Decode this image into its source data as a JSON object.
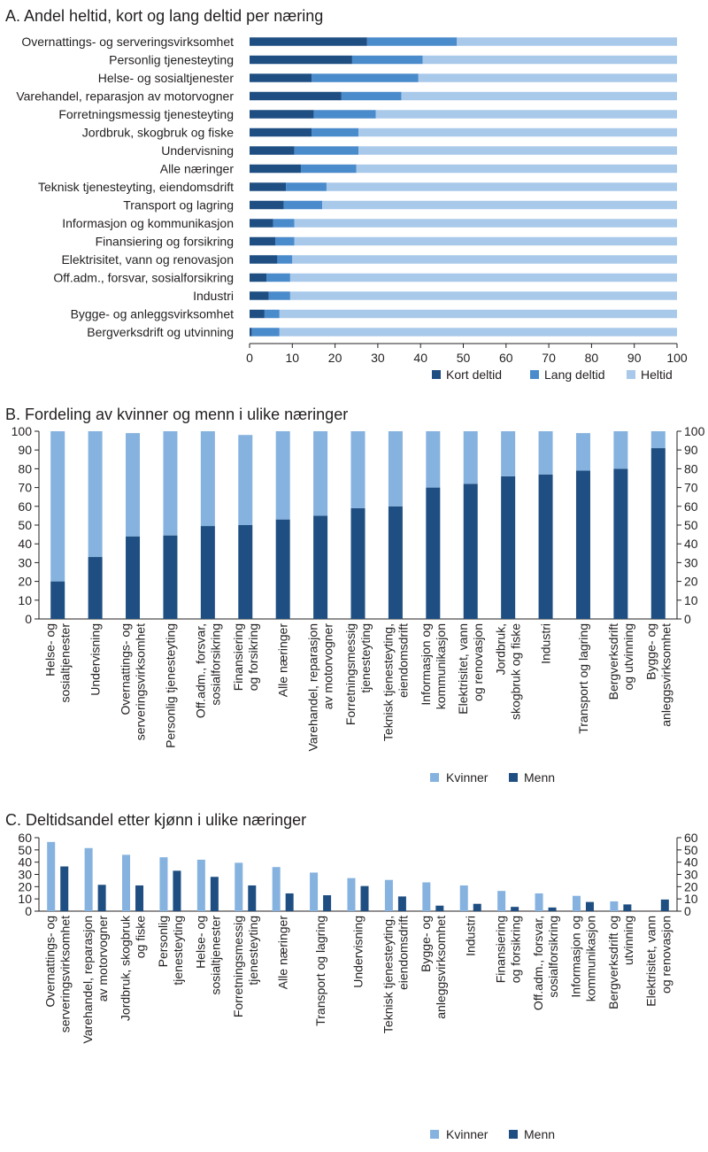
{
  "colors": {
    "dark": "#1f4f82",
    "mid": "#4a8bcc",
    "light": "#a9c9ea",
    "kvinner_c": "#86b2df",
    "menn_c": "#1f4f82"
  },
  "chart_data": [
    {
      "type": "bar",
      "orientation": "horizontal",
      "stacked": true,
      "title": "A. Andel heltid, kort og lang deltid per næring",
      "categories": [
        "Overnattings- og serveringsvirksomhet",
        "Personlig tjenesteyting",
        "Helse- og sosialtjenester",
        "Varehandel, reparasjon av motorvogner",
        "Forretningsmessig tjenesteyting",
        "Jordbruk, skogbruk og fiske",
        "Undervisning",
        "Alle næringer",
        "Teknisk tjenesteyting, eiendomsdrift",
        "Transport og lagring",
        "Informasjon og kommunikasjon",
        "Finansiering og forsikring",
        "Elektrisitet, vann og renovasjon",
        "Off.adm., forsvar, sosialforsikring",
        "Industri",
        "Bygge- og anleggsvirksomhet",
        "Bergverksdrift og utvinning"
      ],
      "series": [
        {
          "name": "Kort deltid",
          "values": [
            27.5,
            24,
            14.5,
            21.5,
            15,
            14.5,
            10.5,
            12,
            8.5,
            8,
            5.5,
            6,
            6.5,
            4,
            4.5,
            3.5,
            0.5
          ]
        },
        {
          "name": "Lang deltid",
          "values": [
            21,
            16.5,
            25,
            14,
            14.5,
            11,
            15,
            13,
            9.5,
            9,
            5,
            4.5,
            3.5,
            5.5,
            5,
            3.5,
            6.5
          ]
        },
        {
          "name": "Heltid",
          "values": [
            51.5,
            59.5,
            60.5,
            64.5,
            70.5,
            74.5,
            74.5,
            75,
            82,
            83,
            89.5,
            89.5,
            90,
            90.5,
            90.5,
            93,
            93
          ]
        }
      ],
      "xticks": [
        "0",
        "10",
        "20",
        "30",
        "40",
        "50",
        "60",
        "70",
        "80",
        "90",
        "100"
      ],
      "xlim": [
        0,
        100
      ],
      "legend_position": "bottom-right"
    },
    {
      "type": "bar",
      "stacked": true,
      "title": "B. Fordeling av kvinner og menn i ulike næringer",
      "categories": [
        [
          "Helse- og",
          "sosialtjenester"
        ],
        [
          "Undervisning"
        ],
        [
          "Overnattings- og",
          "serveringsvirksomhet"
        ],
        [
          "Personlig tjenesteyting"
        ],
        [
          "Off.adm., forsvar,",
          "sosialforsikring"
        ],
        [
          "Finansiering",
          "og forsikring"
        ],
        [
          "Alle næringer"
        ],
        [
          "Varehandel, reparasjon",
          "av motorvogner"
        ],
        [
          "Forretningsmessig",
          "tjenesteyting"
        ],
        [
          "Teknisk tjenesteyting,",
          "eiendomsdrift"
        ],
        [
          "Informasjon og",
          "kommunikasjon"
        ],
        [
          "Elektrisitet, vann",
          "og renovasjon"
        ],
        [
          "Jordbruk,",
          "skogbruk og fiske"
        ],
        [
          "Industri"
        ],
        [
          "Transport og lagring"
        ],
        [
          "Bergverksdrift",
          "og utvinning"
        ],
        [
          "Bygge- og",
          "anleggsvirksomhet"
        ]
      ],
      "series": [
        {
          "name": "Menn",
          "values": [
            20,
            33,
            44,
            44.5,
            49.5,
            50,
            53,
            55,
            59,
            60,
            70,
            72,
            76,
            77,
            79,
            80,
            91
          ]
        },
        {
          "name": "Kvinner",
          "values": [
            80,
            67,
            55,
            55.5,
            50.5,
            48,
            47,
            45,
            41,
            40,
            30,
            28,
            24,
            23,
            20,
            20,
            9
          ]
        }
      ],
      "yticks": [
        "0",
        "10",
        "20",
        "30",
        "40",
        "50",
        "60",
        "70",
        "80",
        "90",
        "100"
      ],
      "ylim": [
        0,
        100
      ],
      "legend_position": "bottom-center"
    },
    {
      "type": "bar",
      "title": "C. Deltidsandel etter kjønn i ulike næringer",
      "categories": [
        [
          "Overnattings- og",
          "serveringsvirksomhet"
        ],
        [
          "Varehandel, reparasjon",
          "av motorvogner"
        ],
        [
          "Jordbruk, skogbruk",
          "og fiske"
        ],
        [
          "Personlig",
          "tjenesteyting"
        ],
        [
          "Helse- og",
          "sosialtjenester"
        ],
        [
          "Forretningsmessig",
          "tjenesteyting"
        ],
        [
          "Alle næringer"
        ],
        [
          "Transport og lagring"
        ],
        [
          "Undervisning"
        ],
        [
          "Teknisk tjenesteyting,",
          "eiendomsdrift"
        ],
        [
          "Bygge- og",
          "anleggsvirksomhet"
        ],
        [
          "Industri"
        ],
        [
          "Finansiering",
          "og forsikring"
        ],
        [
          "Off.adm., forsvar,",
          "sosialforsikring"
        ],
        [
          "Informasjon og",
          "kommunikasjon"
        ],
        [
          "Bergverksdrift og",
          "utvinning"
        ],
        [
          "Elektrisitet, vann",
          "og renovasjon"
        ]
      ],
      "series": [
        {
          "name": "Kvinner",
          "values": [
            56.5,
            51.5,
            46,
            44,
            42,
            39.5,
            36,
            31.5,
            27,
            25.5,
            23.5,
            21,
            16.5,
            14.5,
            12.5,
            8,
            0
          ]
        },
        {
          "name": "Menn",
          "values": [
            36.5,
            21.5,
            21,
            33,
            28,
            21,
            14.5,
            13,
            20.5,
            12,
            4.5,
            6,
            3.5,
            3,
            7.5,
            5.5,
            9.5
          ]
        }
      ],
      "yticks": [
        "0",
        "10",
        "20",
        "30",
        "40",
        "50",
        "60"
      ],
      "ylim": [
        0,
        60
      ],
      "legend_position": "bottom-center"
    }
  ]
}
